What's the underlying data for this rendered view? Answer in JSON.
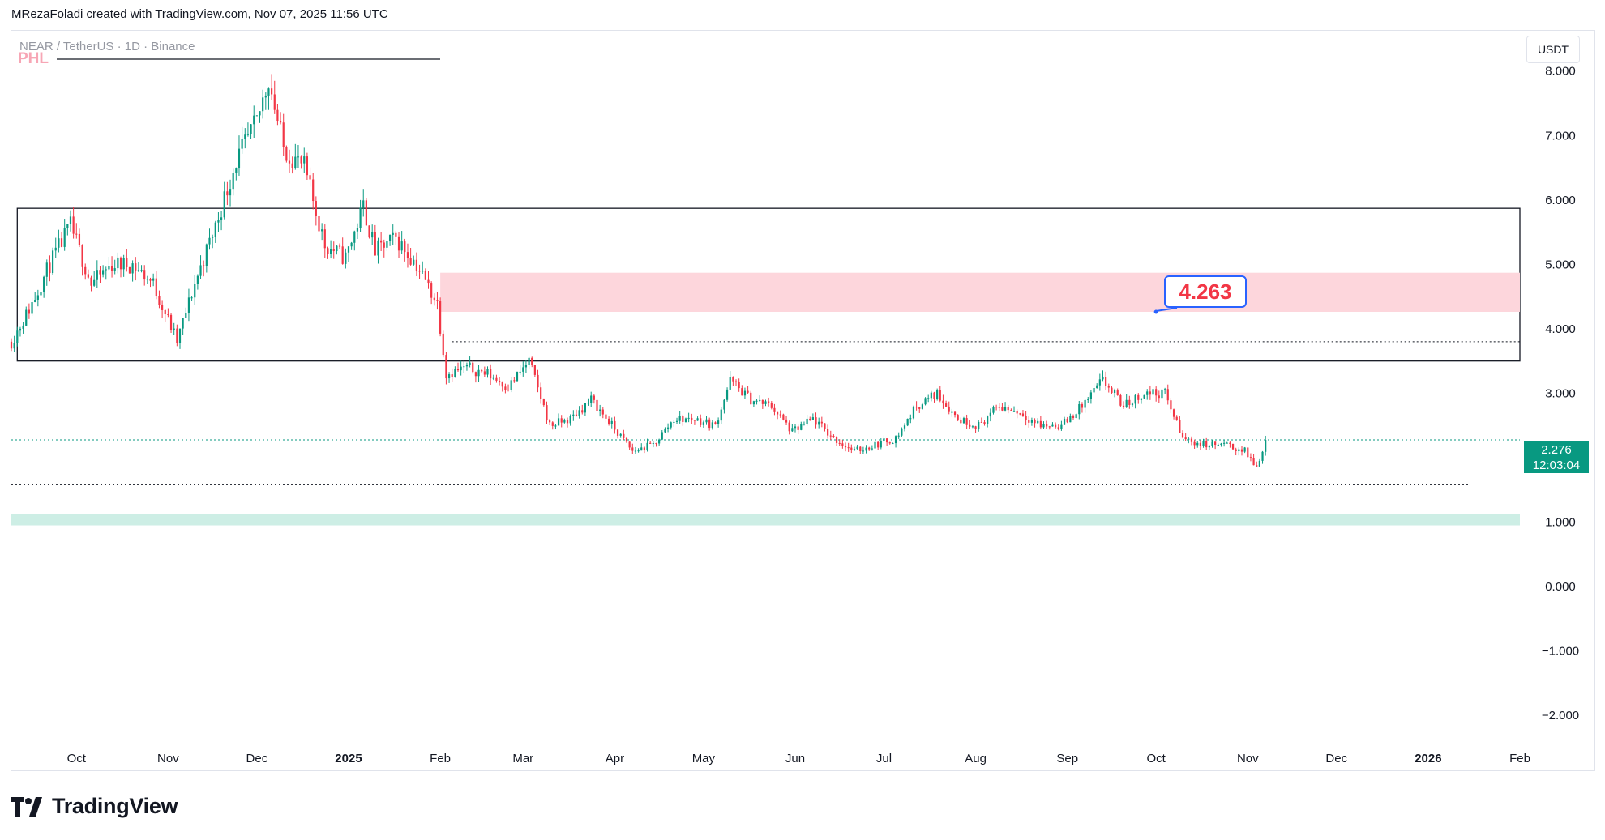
{
  "header": {
    "byline": "MRezaFoladi created with TradingView.com, Nov 07, 2025 11:56 UTC"
  },
  "legend": {
    "symbol": "NEAR / TetherUS · 1D · Binance",
    "indicator": "PHL"
  },
  "currency_button": "USDT",
  "last_price": {
    "value": "2.276",
    "countdown": "12:03:04"
  },
  "annotation": {
    "text": "4.263"
  },
  "footer": {
    "brand": "TradingView"
  },
  "colors": {
    "up": "#089981",
    "down": "#f23645",
    "supply_zone": "#fdd6dc",
    "demand_zone": "#cdeee5",
    "callout_border": "#2962ff",
    "callout_text": "#f23645"
  },
  "chart_data": {
    "type": "candlestick",
    "symbol": "NEAR/USDT",
    "interval": "1D",
    "ylim": [
      -2.4,
      8.6
    ],
    "y_ticks": [
      "8.000",
      "7.000",
      "6.000",
      "5.000",
      "4.000",
      "3.000",
      "2.000",
      "1.000",
      "0.000",
      "−1.000",
      "−2.000"
    ],
    "x_tick_labels": [
      {
        "label": "Oct",
        "date": "2024-10-01"
      },
      {
        "label": "Nov",
        "date": "2024-11-01"
      },
      {
        "label": "Dec",
        "date": "2024-12-01"
      },
      {
        "label": "2025",
        "date": "2025-01-01",
        "bold": true
      },
      {
        "label": "Feb",
        "date": "2025-02-01"
      },
      {
        "label": "Mar",
        "date": "2025-03-01"
      },
      {
        "label": "Apr",
        "date": "2025-04-01"
      },
      {
        "label": "May",
        "date": "2025-05-01"
      },
      {
        "label": "Jun",
        "date": "2025-06-01"
      },
      {
        "label": "Jul",
        "date": "2025-07-01"
      },
      {
        "label": "Aug",
        "date": "2025-08-01"
      },
      {
        "label": "Sep",
        "date": "2025-09-01"
      },
      {
        "label": "Oct",
        "date": "2025-10-01"
      },
      {
        "label": "Nov",
        "date": "2025-11-01"
      },
      {
        "label": "Dec",
        "date": "2025-12-01"
      },
      {
        "label": "2026",
        "date": "2026-01-01",
        "bold": true
      },
      {
        "label": "Feb",
        "date": "2026-02-01"
      }
    ],
    "x_range": [
      "2024-09-09",
      "2026-02-01"
    ],
    "last_close": 2.276,
    "price_path": [
      [
        "2024-09-09",
        3.8
      ],
      [
        "2024-09-15",
        4.3
      ],
      [
        "2024-09-22",
        5.0
      ],
      [
        "2024-09-29",
        5.6
      ],
      [
        "2024-10-06",
        4.7
      ],
      [
        "2024-10-13",
        5.0
      ],
      [
        "2024-10-20",
        5.0
      ],
      [
        "2024-10-27",
        4.7
      ],
      [
        "2024-11-04",
        3.8
      ],
      [
        "2024-11-10",
        4.7
      ],
      [
        "2024-11-17",
        5.6
      ],
      [
        "2024-11-24",
        6.6
      ],
      [
        "2024-12-01",
        7.2
      ],
      [
        "2024-12-05",
        7.9
      ],
      [
        "2024-12-10",
        6.8
      ],
      [
        "2024-12-17",
        6.5
      ],
      [
        "2024-12-24",
        5.3
      ],
      [
        "2024-12-31",
        5.1
      ],
      [
        "2025-01-06",
        5.9
      ],
      [
        "2025-01-10",
        5.2
      ],
      [
        "2025-01-17",
        5.4
      ],
      [
        "2025-01-24",
        5.0
      ],
      [
        "2025-01-31",
        4.4
      ],
      [
        "2025-02-03",
        3.3
      ],
      [
        "2025-02-10",
        3.4
      ],
      [
        "2025-02-17",
        3.3
      ],
      [
        "2025-02-24",
        3.1
      ],
      [
        "2025-03-03",
        3.5
      ],
      [
        "2025-03-10",
        2.5
      ],
      [
        "2025-03-17",
        2.6
      ],
      [
        "2025-03-24",
        2.9
      ],
      [
        "2025-03-31",
        2.5
      ],
      [
        "2025-04-07",
        2.1
      ],
      [
        "2025-04-14",
        2.2
      ],
      [
        "2025-04-21",
        2.6
      ],
      [
        "2025-04-28",
        2.6
      ],
      [
        "2025-05-05",
        2.5
      ],
      [
        "2025-05-10",
        3.2
      ],
      [
        "2025-05-17",
        2.9
      ],
      [
        "2025-05-24",
        2.8
      ],
      [
        "2025-05-31",
        2.4
      ],
      [
        "2025-06-07",
        2.6
      ],
      [
        "2025-06-14",
        2.3
      ],
      [
        "2025-06-21",
        2.1
      ],
      [
        "2025-06-28",
        2.2
      ],
      [
        "2025-07-05",
        2.3
      ],
      [
        "2025-07-12",
        2.8
      ],
      [
        "2025-07-19",
        3.0
      ],
      [
        "2025-07-26",
        2.6
      ],
      [
        "2025-08-02",
        2.5
      ],
      [
        "2025-08-09",
        2.8
      ],
      [
        "2025-08-16",
        2.7
      ],
      [
        "2025-08-23",
        2.5
      ],
      [
        "2025-08-30",
        2.5
      ],
      [
        "2025-09-06",
        2.8
      ],
      [
        "2025-09-13",
        3.2
      ],
      [
        "2025-09-20",
        2.8
      ],
      [
        "2025-09-27",
        3.0
      ],
      [
        "2025-10-04",
        3.0
      ],
      [
        "2025-10-10",
        2.3
      ],
      [
        "2025-10-17",
        2.2
      ],
      [
        "2025-10-24",
        2.2
      ],
      [
        "2025-10-31",
        2.1
      ],
      [
        "2025-11-04",
        1.85
      ],
      [
        "2025-11-07",
        2.276
      ]
    ],
    "zones": [
      {
        "type": "rectangle",
        "from": "2024-09-11",
        "to": "2026-02-01",
        "top": 5.87,
        "bottom": 3.5,
        "style": "outline"
      },
      {
        "type": "rectangle",
        "from": "2025-02-01",
        "to": "2026-02-01",
        "top": 4.87,
        "bottom": 4.263,
        "style": "supply"
      },
      {
        "type": "rectangle",
        "from": "2024-09-09",
        "to": "2026-02-01",
        "top": 1.13,
        "bottom": 0.95,
        "style": "demand"
      }
    ],
    "lines": [
      {
        "from": "2025-02-05",
        "to": "2026-02-01",
        "y": 3.8,
        "style": "dotted"
      },
      {
        "from": "2024-09-09",
        "to": "2026-01-15",
        "y": 1.58,
        "style": "dotted"
      },
      {
        "from": "2024-09-09",
        "to": "2026-02-01",
        "y": 2.276,
        "style": "dotted-green"
      }
    ],
    "callout": {
      "date": "2025-10-01",
      "y": 4.263
    },
    "grid": false,
    "legend_position": "top-left"
  }
}
